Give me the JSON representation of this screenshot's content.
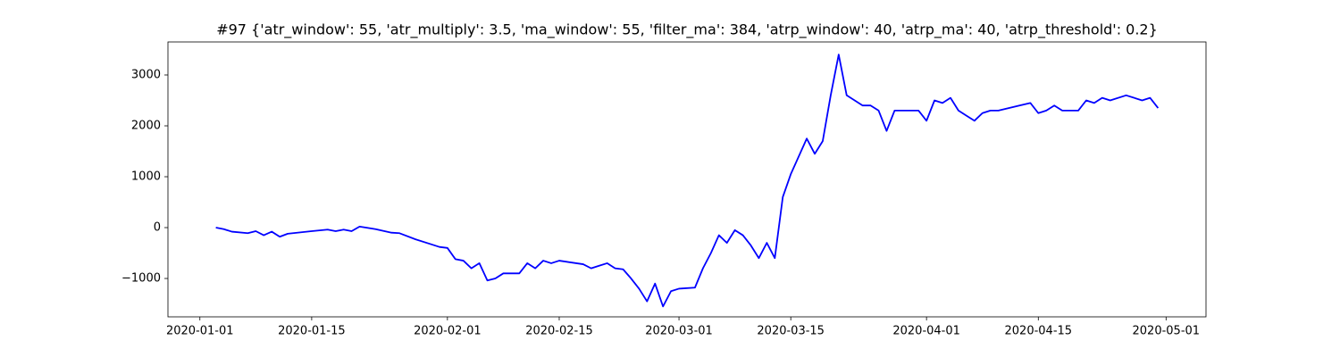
{
  "chart_data": {
    "type": "line",
    "title": "#97 {'atr_window': 55, 'atr_multiply': 3.5, 'ma_window': 55, 'filter_ma': 384, 'atrp_window': 40, 'atrp_ma': 40, 'atrp_threshold': 0.2}",
    "x": [
      "2020-01-03",
      "2020-01-04",
      "2020-01-05",
      "2020-01-07",
      "2020-01-08",
      "2020-01-09",
      "2020-01-10",
      "2020-01-11",
      "2020-01-12",
      "2020-01-15",
      "2020-01-17",
      "2020-01-18",
      "2020-01-19",
      "2020-01-20",
      "2020-01-21",
      "2020-01-23",
      "2020-01-25",
      "2020-01-26",
      "2020-01-28",
      "2020-01-30",
      "2020-01-31",
      "2020-02-01",
      "2020-02-02",
      "2020-02-03",
      "2020-02-04",
      "2020-02-05",
      "2020-02-06",
      "2020-02-07",
      "2020-02-08",
      "2020-02-10",
      "2020-02-11",
      "2020-02-12",
      "2020-02-13",
      "2020-02-14",
      "2020-02-15",
      "2020-02-18",
      "2020-02-19",
      "2020-02-20",
      "2020-02-21",
      "2020-02-22",
      "2020-02-23",
      "2020-02-24",
      "2020-02-25",
      "2020-02-26",
      "2020-02-27",
      "2020-02-28",
      "2020-02-29",
      "2020-03-01",
      "2020-03-03",
      "2020-03-04",
      "2020-03-05",
      "2020-03-06",
      "2020-03-07",
      "2020-03-08",
      "2020-03-09",
      "2020-03-10",
      "2020-03-11",
      "2020-03-12",
      "2020-03-13",
      "2020-03-14",
      "2020-03-15",
      "2020-03-17",
      "2020-03-18",
      "2020-03-19",
      "2020-03-20",
      "2020-03-21",
      "2020-03-22",
      "2020-03-23",
      "2020-03-24",
      "2020-03-25",
      "2020-03-26",
      "2020-03-27",
      "2020-03-28",
      "2020-03-31",
      "2020-04-01",
      "2020-04-02",
      "2020-04-03",
      "2020-04-04",
      "2020-04-05",
      "2020-04-06",
      "2020-04-07",
      "2020-04-08",
      "2020-04-09",
      "2020-04-10",
      "2020-04-14",
      "2020-04-15",
      "2020-04-16",
      "2020-04-17",
      "2020-04-18",
      "2020-04-19",
      "2020-04-20",
      "2020-04-21",
      "2020-04-22",
      "2020-04-23",
      "2020-04-24",
      "2020-04-26",
      "2020-04-28",
      "2020-04-29",
      "2020-04-30"
    ],
    "values": [
      0,
      -30,
      -80,
      -110,
      -70,
      -150,
      -80,
      -180,
      -120,
      -70,
      -40,
      -70,
      -40,
      -70,
      20,
      -30,
      -100,
      -110,
      -230,
      -330,
      -380,
      -400,
      -620,
      -650,
      -800,
      -700,
      -1040,
      -1000,
      -900,
      -900,
      -700,
      -800,
      -650,
      -700,
      -650,
      -720,
      -800,
      -750,
      -700,
      -800,
      -820,
      -1000,
      -1200,
      -1450,
      -1100,
      -1550,
      -1250,
      -1200,
      -1180,
      -800,
      -500,
      -150,
      -300,
      -50,
      -150,
      -350,
      -600,
      -300,
      -600,
      600,
      1050,
      1750,
      1450,
      1700,
      2600,
      3400,
      2600,
      2500,
      2400,
      2400,
      2300,
      1900,
      2300,
      2300,
      2100,
      2500,
      2450,
      2550,
      2300,
      2200,
      2100,
      2250,
      2300,
      2300,
      2450,
      2250,
      2300,
      2400,
      2300,
      2300,
      2300,
      2500,
      2450,
      2550,
      2500,
      2600,
      2500,
      2550,
      2350
    ],
    "color": "#0000ff",
    "xlim": [
      "2019-12-28",
      "2020-05-06"
    ],
    "xticks": [
      "2020-01-01",
      "2020-01-15",
      "2020-02-01",
      "2020-02-15",
      "2020-03-01",
      "2020-03-15",
      "2020-04-01",
      "2020-04-15",
      "2020-05-01"
    ],
    "ylim": [
      -1754,
      3649
    ],
    "yticks": [
      {
        "value": -1000,
        "label": "−1000"
      },
      0,
      1000,
      2000,
      3000
    ]
  }
}
